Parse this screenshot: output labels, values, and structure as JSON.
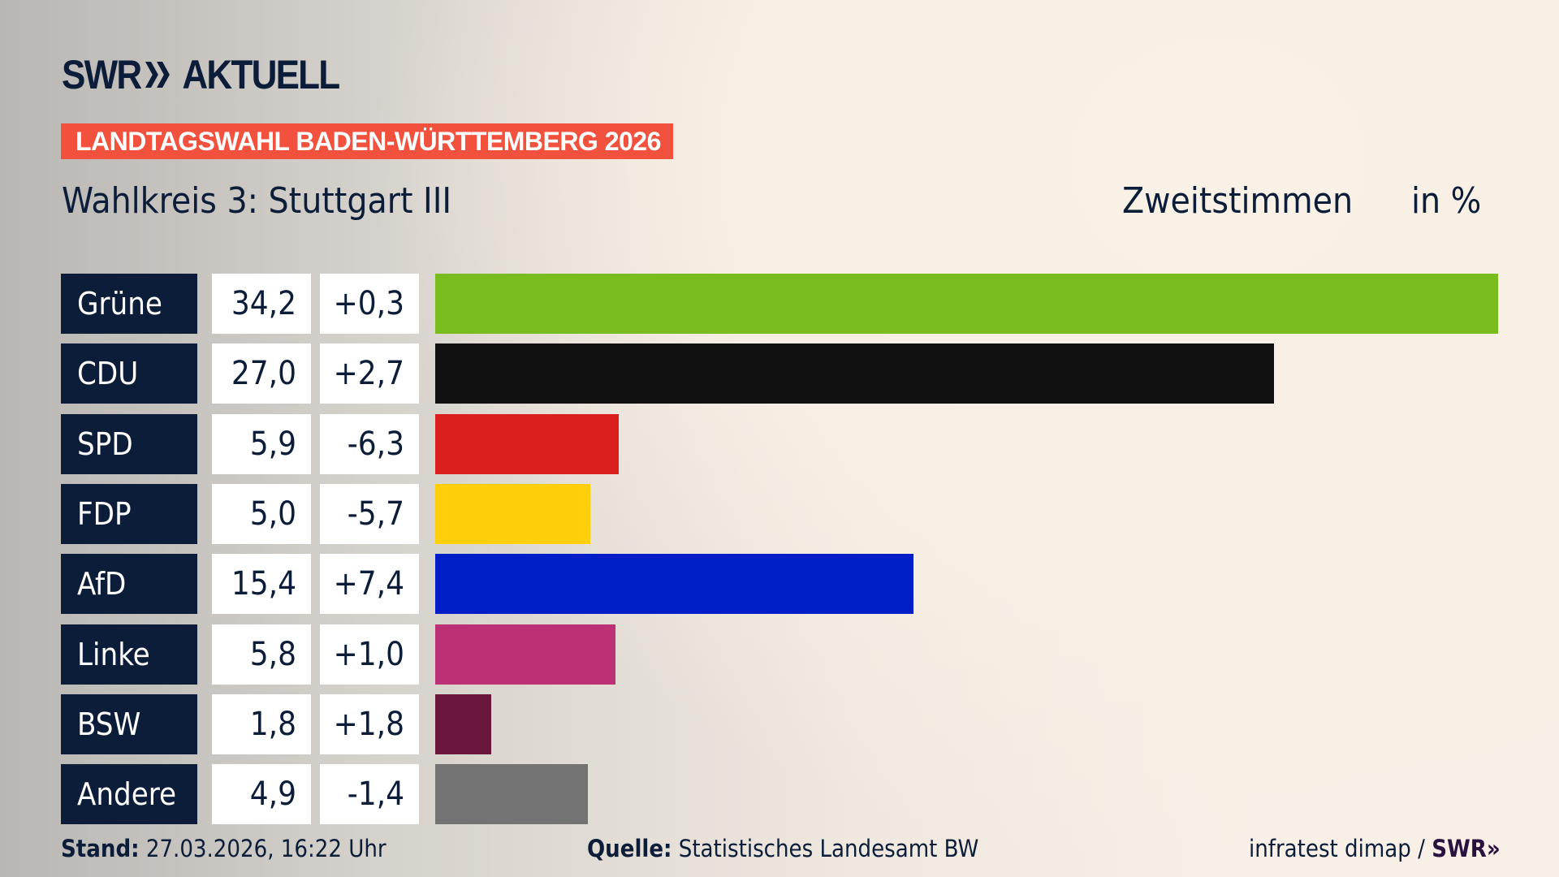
{
  "header": {
    "logo_text": "SWR",
    "logo_suffix": "AKTUELL",
    "banner": "LANDTAGSWAHL BADEN-WÜRTTEMBERG 2026",
    "subtitle": "Wahlkreis 3: Stuttgart III",
    "vote_type": "Zweitstimmen",
    "unit": "in %"
  },
  "chart_data": {
    "type": "bar",
    "orientation": "horizontal",
    "categories": [
      "Grüne",
      "CDU",
      "SPD",
      "FDP",
      "AfD",
      "Linke",
      "BSW",
      "Andere"
    ],
    "values": [
      34.2,
      27.0,
      5.9,
      5.0,
      15.4,
      5.8,
      1.8,
      4.9
    ],
    "value_labels": [
      "34,2",
      "27,0",
      "5,9",
      "5,0",
      "15,4",
      "5,8",
      "1,8",
      "4,9"
    ],
    "change_labels": [
      "+0,3",
      "+2,7",
      "-6,3",
      "-5,7",
      "+7,4",
      "+1,0",
      "+1,8",
      "-1,4"
    ],
    "changes": [
      0.3,
      2.7,
      -6.3,
      -5.7,
      7.4,
      1.0,
      1.8,
      -1.4
    ],
    "colors": [
      "#78bc1e",
      "#111111",
      "#d9201e",
      "#fecf0a",
      "#001ec8",
      "#bc3076",
      "#6a173e",
      "#737373"
    ],
    "xlim": [
      0,
      34.2
    ],
    "grid": false,
    "ylabel": "Zweitstimmen",
    "unit": "in %"
  },
  "footer": {
    "stand_label": "Stand:",
    "stand_value": "27.03.2026, 16:22 Uhr",
    "source_label": "Quelle:",
    "source_value": "Statistisches Landesamt BW",
    "credit": "infratest dimap /",
    "credit_logo": "SWR"
  }
}
